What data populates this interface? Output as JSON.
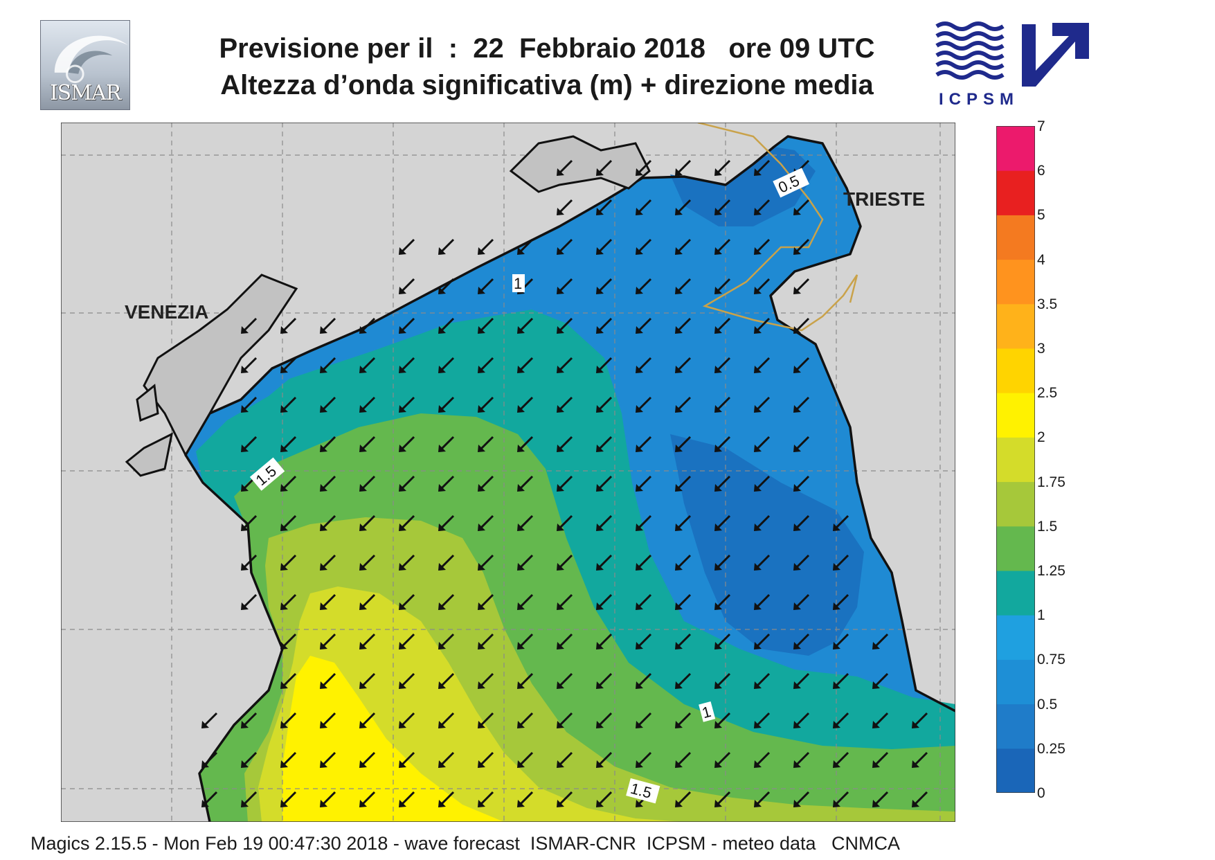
{
  "header": {
    "title_line1": "Previsione per il  :  22  Febbraio 2018   ore 09 UTC",
    "title_line2": "Altezza d’onda significativa (m) + direzione media",
    "logo_left": "ISMAR",
    "logo_right": "ICPSM"
  },
  "map": {
    "places": [
      {
        "name": "VENEZIA"
      },
      {
        "name": "TRIESTE"
      }
    ],
    "contour_labels": [
      "0.5",
      "1",
      "1.5",
      "1",
      "1.5"
    ],
    "wave_direction": "towards south-west"
  },
  "colorbar": {
    "unit": "m",
    "levels": [
      "0",
      "0.25",
      "0.5",
      "0.75",
      "1",
      "1.25",
      "1.5",
      "1.75",
      "2",
      "2.5",
      "3",
      "3.5",
      "4",
      "5",
      "6",
      "7"
    ],
    "colors": [
      "#1a66b8",
      "#1f7cc9",
      "#1e8fd6",
      "#1fa0e0",
      "#12a89e",
      "#64b84e",
      "#a6c83a",
      "#d4dc2a",
      "#fff200",
      "#ffd400",
      "#ffb21a",
      "#ff931e",
      "#f47a20",
      "#e82020",
      "#ec1a6c"
    ]
  },
  "footer": {
    "text": "Magics 2.15.5 - Mon Feb 19 00:47:30 2018 - wave forecast  ISMAR-CNR  ICPSM - meteo data   CNMCA"
  }
}
